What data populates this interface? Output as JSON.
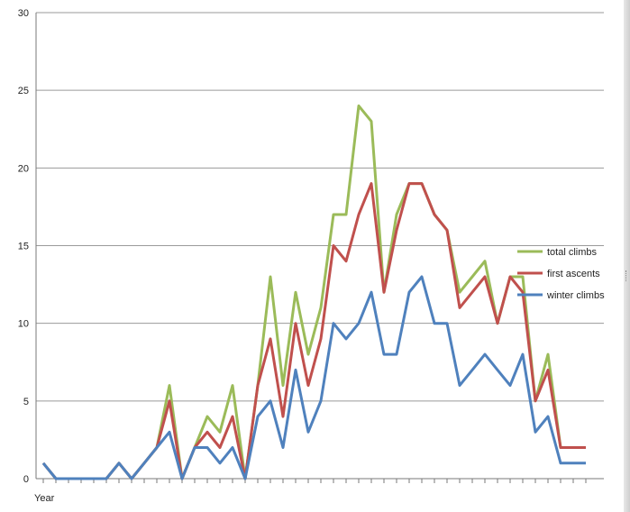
{
  "chart_data": {
    "type": "line",
    "title": "",
    "xlabel": "Year",
    "ylabel": "",
    "ylim": [
      0,
      30
    ],
    "yticks": [
      0,
      5,
      10,
      15,
      20,
      25,
      30
    ],
    "grid": true,
    "legend_position": "right",
    "x_index": [
      1,
      2,
      3,
      4,
      5,
      6,
      7,
      8,
      9,
      10,
      11,
      12,
      13,
      14,
      15,
      16,
      17,
      18,
      19,
      20,
      21,
      22,
      23,
      24,
      25,
      26,
      27,
      28,
      29,
      30,
      31,
      32,
      33,
      34,
      35,
      36,
      37,
      38,
      39,
      40,
      41,
      42,
      43,
      44
    ],
    "series": [
      {
        "name": "total climbs",
        "color": "#9bbb59",
        "values": [
          1,
          0,
          0,
          0,
          0,
          0,
          1,
          0,
          1,
          2,
          6,
          0,
          2,
          4,
          3,
          6,
          0,
          6,
          13,
          6,
          12,
          8,
          11,
          17,
          17,
          24,
          23,
          12,
          17,
          19,
          19,
          17,
          16,
          12,
          13,
          14,
          10,
          13,
          13,
          5,
          8,
          2,
          2,
          2
        ]
      },
      {
        "name": "first ascents",
        "color": "#c0504d",
        "values": [
          1,
          0,
          0,
          0,
          0,
          0,
          1,
          0,
          1,
          2,
          5,
          0,
          2,
          3,
          2,
          4,
          0,
          6,
          9,
          4,
          10,
          6,
          9,
          15,
          14,
          17,
          19,
          12,
          16,
          19,
          19,
          17,
          16,
          11,
          12,
          13,
          10,
          13,
          12,
          5,
          7,
          2,
          2,
          2
        ]
      },
      {
        "name": "winter climbs",
        "color": "#4f81bd",
        "values": [
          1,
          0,
          0,
          0,
          0,
          0,
          1,
          0,
          1,
          2,
          3,
          0,
          2,
          2,
          1,
          2,
          0,
          4,
          5,
          2,
          7,
          3,
          5,
          10,
          9,
          10,
          12,
          8,
          8,
          12,
          13,
          10,
          10,
          6,
          7,
          8,
          7,
          6,
          8,
          3,
          4,
          1,
          1,
          1
        ]
      }
    ]
  }
}
